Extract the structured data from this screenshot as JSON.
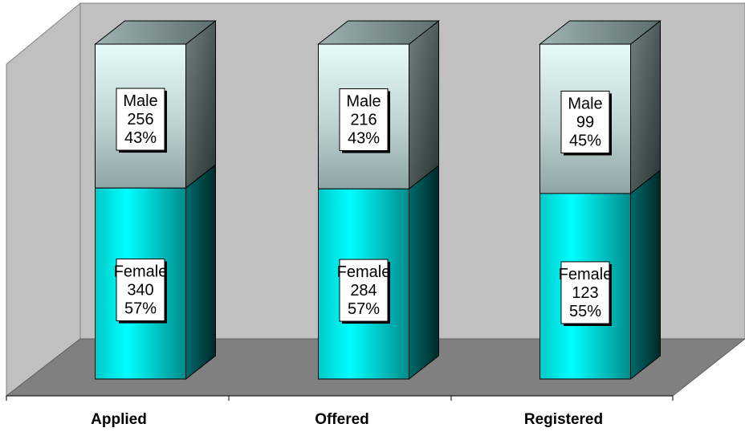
{
  "chart_data": {
    "type": "bar",
    "stacked": true,
    "style": "3d-stacked-100-percent",
    "categories": [
      "Applied",
      "Offered",
      "Registered"
    ],
    "series": [
      {
        "name": "Female",
        "values": [
          340,
          284,
          123
        ],
        "percents": [
          "57%",
          "57%",
          "55%"
        ],
        "color": "#00e5e5"
      },
      {
        "name": "Male",
        "values": [
          256,
          216,
          99
        ],
        "percents": [
          "43%",
          "43%",
          "45%"
        ],
        "color": "#b8cccc"
      }
    ],
    "grid": false,
    "legend": "none",
    "colors": {
      "back_wall": "#c0c0c0",
      "floor": "#808080",
      "outline": "#000000"
    }
  }
}
